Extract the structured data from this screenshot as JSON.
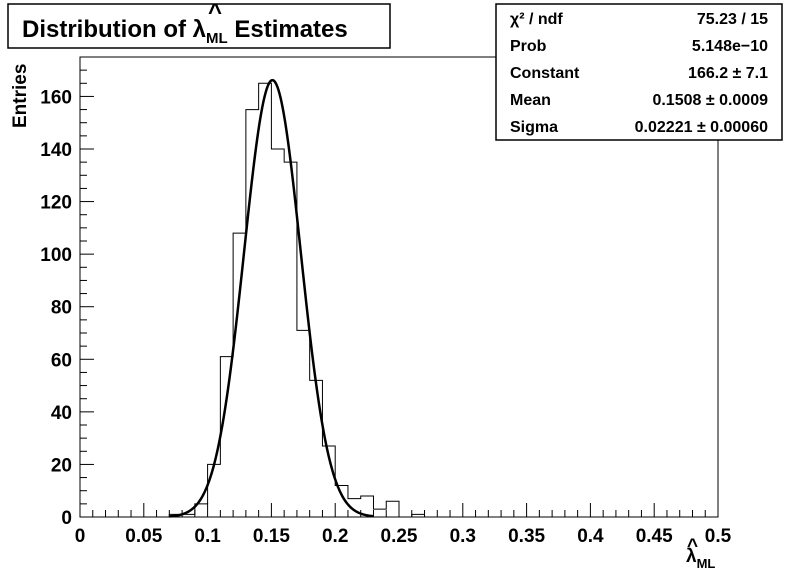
{
  "chart_data": {
    "type": "bar",
    "title_prefix": "Distribution of ",
    "title_symbol": "λ",
    "title_hat": "^",
    "title_subscript": "ML",
    "title_suffix": " Estimates",
    "xlabel_symbol": "λ",
    "xlabel_hat": "^",
    "xlabel_subscript": "ML",
    "ylabel": "Entries",
    "xlim": [
      0,
      0.5
    ],
    "ylim": [
      0,
      175
    ],
    "x_ticks": [
      "0",
      "0.05",
      "0.1",
      "0.15",
      "0.2",
      "0.25",
      "0.3",
      "0.35",
      "0.4",
      "0.45",
      "0.5"
    ],
    "y_ticks": [
      "0",
      "20",
      "40",
      "60",
      "80",
      "100",
      "120",
      "140",
      "160"
    ],
    "bin_width": 0.01,
    "bins": [
      {
        "x": 0.0,
        "y": 0
      },
      {
        "x": 0.01,
        "y": 0
      },
      {
        "x": 0.02,
        "y": 0
      },
      {
        "x": 0.03,
        "y": 0
      },
      {
        "x": 0.04,
        "y": 0
      },
      {
        "x": 0.05,
        "y": 0
      },
      {
        "x": 0.06,
        "y": 0
      },
      {
        "x": 0.07,
        "y": 1
      },
      {
        "x": 0.08,
        "y": 1
      },
      {
        "x": 0.09,
        "y": 5
      },
      {
        "x": 0.1,
        "y": 20
      },
      {
        "x": 0.11,
        "y": 61
      },
      {
        "x": 0.12,
        "y": 108
      },
      {
        "x": 0.13,
        "y": 155
      },
      {
        "x": 0.14,
        "y": 165
      },
      {
        "x": 0.15,
        "y": 140
      },
      {
        "x": 0.16,
        "y": 135
      },
      {
        "x": 0.17,
        "y": 71
      },
      {
        "x": 0.18,
        "y": 52
      },
      {
        "x": 0.19,
        "y": 27
      },
      {
        "x": 0.2,
        "y": 12
      },
      {
        "x": 0.21,
        "y": 7
      },
      {
        "x": 0.22,
        "y": 8
      },
      {
        "x": 0.23,
        "y": 3
      },
      {
        "x": 0.24,
        "y": 6
      },
      {
        "x": 0.25,
        "y": 0
      },
      {
        "x": 0.26,
        "y": 1
      },
      {
        "x": 0.27,
        "y": 0
      },
      {
        "x": 0.28,
        "y": 0
      },
      {
        "x": 0.29,
        "y": 0
      },
      {
        "x": 0.3,
        "y": 0
      },
      {
        "x": 0.31,
        "y": 0
      },
      {
        "x": 0.32,
        "y": 0
      },
      {
        "x": 0.33,
        "y": 0
      },
      {
        "x": 0.34,
        "y": 0
      },
      {
        "x": 0.35,
        "y": 0
      },
      {
        "x": 0.36,
        "y": 0
      },
      {
        "x": 0.37,
        "y": 0
      },
      {
        "x": 0.38,
        "y": 0
      },
      {
        "x": 0.39,
        "y": 0
      },
      {
        "x": 0.4,
        "y": 0
      },
      {
        "x": 0.41,
        "y": 0
      },
      {
        "x": 0.42,
        "y": 0
      },
      {
        "x": 0.43,
        "y": 0
      },
      {
        "x": 0.44,
        "y": 0
      },
      {
        "x": 0.45,
        "y": 0
      },
      {
        "x": 0.46,
        "y": 0
      },
      {
        "x": 0.47,
        "y": 0
      },
      {
        "x": 0.48,
        "y": 0
      },
      {
        "x": 0.49,
        "y": 0
      }
    ],
    "fit": {
      "function": "gaus",
      "constant": 166.2,
      "mean": 0.1508,
      "sigma": 0.02221,
      "x_range": [
        0.07,
        0.23
      ]
    },
    "stats_box": {
      "rows": [
        {
          "label": "χ² / ndf",
          "value": "75.23 / 15"
        },
        {
          "label": "Prob",
          "value": "5.148e−10"
        },
        {
          "label": "Constant",
          "value": "166.2 ± 7.1"
        },
        {
          "label": "Mean",
          "value": "0.1508 ± 0.0009"
        },
        {
          "label": "Sigma",
          "value": "0.02221 ± 0.00060"
        }
      ],
      "placement": "top-right"
    },
    "grid": false,
    "colors": {
      "histogram": "#000000",
      "fit": "#000000",
      "background": "#ffffff"
    }
  }
}
